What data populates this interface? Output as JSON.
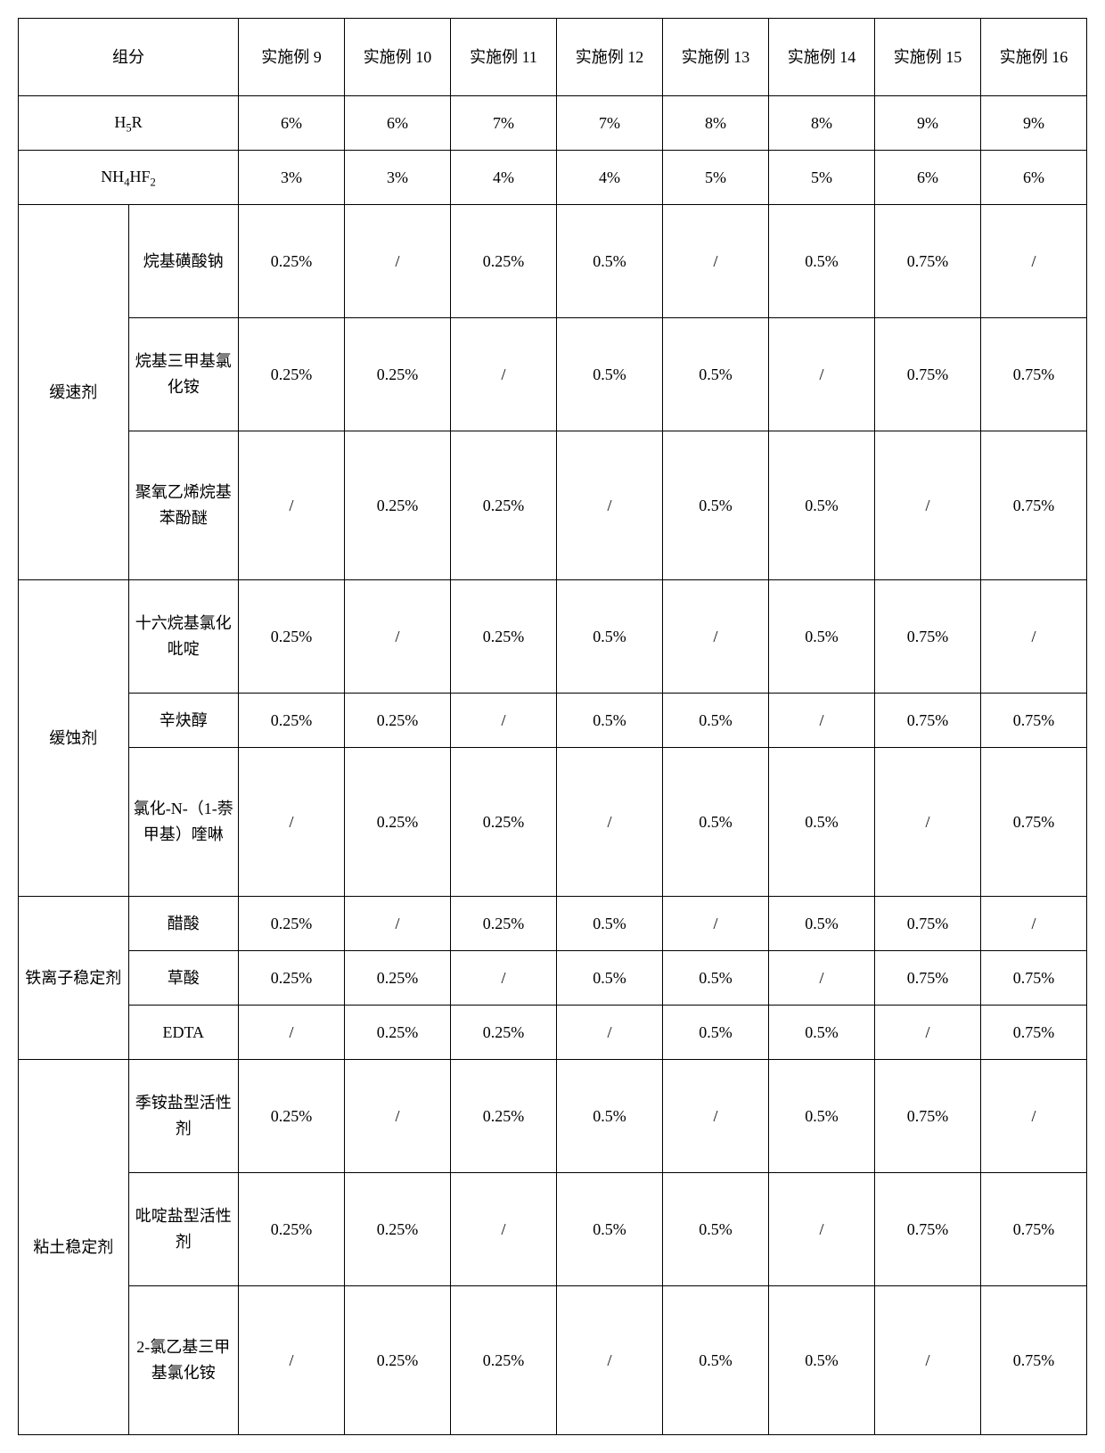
{
  "header": {
    "component": "组分",
    "c9": "实施例 9",
    "c10": "实施例 10",
    "c11": "实施例 11",
    "c12": "实施例 12",
    "c13": "实施例 13",
    "c14": "实施例 14",
    "c15": "实施例 15",
    "c16": "实施例 16"
  },
  "r1": {
    "label": "H₅R",
    "v9": "6%",
    "v10": "6%",
    "v11": "7%",
    "v12": "7%",
    "v13": "8%",
    "v14": "8%",
    "v15": "9%",
    "v16": "9%"
  },
  "r2": {
    "label": "NH₄HF₂",
    "v9": "3%",
    "v10": "3%",
    "v11": "4%",
    "v12": "4%",
    "v13": "5%",
    "v14": "5%",
    "v15": "6%",
    "v16": "6%"
  },
  "g1": {
    "group": "缓速剂",
    "a": {
      "label": "烷基磺酸钠",
      "v9": "0.25%",
      "v10": "/",
      "v11": "0.25%",
      "v12": "0.5%",
      "v13": "/",
      "v14": "0.5%",
      "v15": "0.75%",
      "v16": "/"
    },
    "b": {
      "label": "烷基三甲基氯化铵",
      "v9": "0.25%",
      "v10": "0.25%",
      "v11": "/",
      "v12": "0.5%",
      "v13": "0.5%",
      "v14": "/",
      "v15": "0.75%",
      "v16": "0.75%"
    },
    "c": {
      "label": "聚氧乙烯烷基苯酚醚",
      "v9": "/",
      "v10": "0.25%",
      "v11": "0.25%",
      "v12": "/",
      "v13": "0.5%",
      "v14": "0.5%",
      "v15": "/",
      "v16": "0.75%"
    }
  },
  "g2": {
    "group": "缓蚀剂",
    "a": {
      "label": "十六烷基氯化吡啶",
      "v9": "0.25%",
      "v10": "/",
      "v11": "0.25%",
      "v12": "0.5%",
      "v13": "/",
      "v14": "0.5%",
      "v15": "0.75%",
      "v16": "/"
    },
    "b": {
      "label": "辛炔醇",
      "v9": "0.25%",
      "v10": "0.25%",
      "v11": "/",
      "v12": "0.5%",
      "v13": "0.5%",
      "v14": "/",
      "v15": "0.75%",
      "v16": "0.75%"
    },
    "c": {
      "label": "氯化-N-（1-萘甲基）喹啉",
      "v9": "/",
      "v10": "0.25%",
      "v11": "0.25%",
      "v12": "/",
      "v13": "0.5%",
      "v14": "0.5%",
      "v15": "/",
      "v16": "0.75%"
    }
  },
  "g3": {
    "group": "铁离子稳定剂",
    "a": {
      "label": "醋酸",
      "v9": "0.25%",
      "v10": "/",
      "v11": "0.25%",
      "v12": "0.5%",
      "v13": "/",
      "v14": "0.5%",
      "v15": "0.75%",
      "v16": "/"
    },
    "b": {
      "label": "草酸",
      "v9": "0.25%",
      "v10": "0.25%",
      "v11": "/",
      "v12": "0.5%",
      "v13": "0.5%",
      "v14": "/",
      "v15": "0.75%",
      "v16": "0.75%"
    },
    "c": {
      "label": "EDTA",
      "v9": "/",
      "v10": "0.25%",
      "v11": "0.25%",
      "v12": "/",
      "v13": "0.5%",
      "v14": "0.5%",
      "v15": "/",
      "v16": "0.75%"
    }
  },
  "g4": {
    "group": "粘土稳定剂",
    "a": {
      "label": "季铵盐型活性剂",
      "v9": "0.25%",
      "v10": "/",
      "v11": "0.25%",
      "v12": "0.5%",
      "v13": "/",
      "v14": "0.5%",
      "v15": "0.75%",
      "v16": "/"
    },
    "b": {
      "label": "吡啶盐型活性剂",
      "v9": "0.25%",
      "v10": "0.25%",
      "v11": "/",
      "v12": "0.5%",
      "v13": "0.5%",
      "v14": "/",
      "v15": "0.75%",
      "v16": "0.75%"
    },
    "c": {
      "label": "2-氯乙基三甲基氯化铵",
      "v9": "/",
      "v10": "0.25%",
      "v11": "0.25%",
      "v12": "/",
      "v13": "0.5%",
      "v14": "0.5%",
      "v15": "/",
      "v16": "0.75%"
    }
  }
}
